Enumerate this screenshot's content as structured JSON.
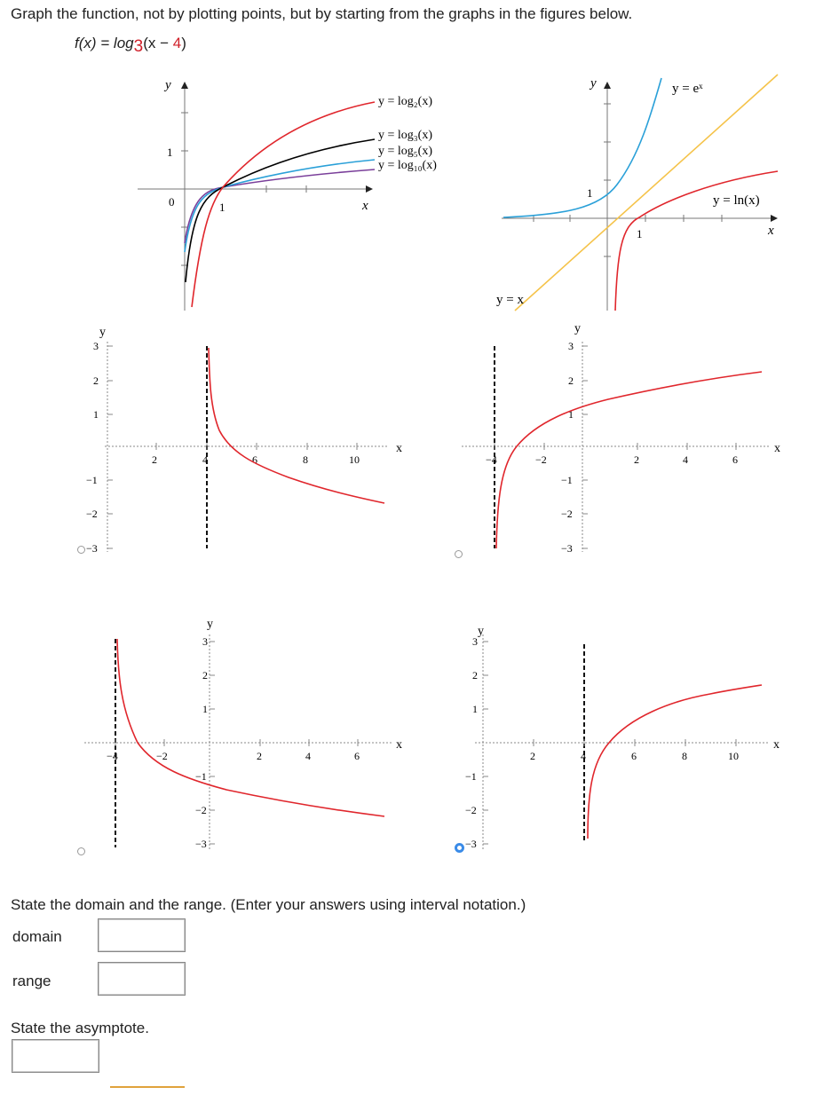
{
  "question": {
    "instruction": "Graph the function, not by plotting points, but by starting from the graphs in the figures below.",
    "function_prefix": "f(x) = log",
    "function_base": "3",
    "function_open": "(x − ",
    "function_const": "4",
    "function_close": ")"
  },
  "reference_left": {
    "y_axis": "y",
    "x_axis": "x",
    "tick_1y": "1",
    "tick_0": "0",
    "tick_1x": "1",
    "labels": [
      "y = log₂(x)",
      "y = log₃(x)",
      "y = log₅(x)",
      "y = log₁₀(x)"
    ],
    "colors": [
      "#e0262c",
      "#000000",
      "#2aa0d8",
      "#7a3f9a"
    ]
  },
  "reference_right": {
    "y_axis": "y",
    "x_axis": "x",
    "tick_1y": "1",
    "tick_1x": "1",
    "label_exp": "y = eˣ",
    "label_ln": "y = ln(x)",
    "label_id": "y = x",
    "colors": {
      "exp": "#2aa0d8",
      "ln": "#e0262c",
      "identity": "#f5c34a"
    }
  },
  "options": [
    {
      "name": "A",
      "selected": false,
      "x_ticks": [
        "2",
        "4",
        "6",
        "8",
        "10"
      ],
      "y_ticks": [
        "3",
        "2",
        "1",
        "−1",
        "−2",
        "−3"
      ],
      "x_label": "x",
      "y_label": "y",
      "asymptote_x": 4
    },
    {
      "name": "B",
      "selected": false,
      "x_ticks": [
        "−4",
        "−2",
        "2",
        "4",
        "6"
      ],
      "y_ticks": [
        "3",
        "2",
        "1",
        "−1",
        "−2",
        "−3"
      ],
      "x_label": "x",
      "y_label": "y",
      "asymptote_x": -4
    },
    {
      "name": "C",
      "selected": false,
      "x_ticks": [
        "−4",
        "−2",
        "2",
        "4",
        "6"
      ],
      "y_ticks": [
        "3",
        "2",
        "1",
        "−1",
        "−2",
        "−3"
      ],
      "x_label": "x",
      "y_label": "y",
      "asymptote_x": -4
    },
    {
      "name": "D",
      "selected": true,
      "x_ticks": [
        "2",
        "4",
        "6",
        "8",
        "10"
      ],
      "y_ticks": [
        "3",
        "2",
        "1",
        "−1",
        "−2",
        "−3"
      ],
      "x_label": "x",
      "y_label": "y",
      "asymptote_x": 4
    }
  ],
  "answers": {
    "domain_range_prompt": "State the domain and the range. (Enter your answers using interval notation.)",
    "domain_label": "domain",
    "domain_value": "",
    "range_label": "range",
    "range_value": "",
    "asymptote_prompt": "State the asymptote.",
    "asymptote_value": ""
  }
}
